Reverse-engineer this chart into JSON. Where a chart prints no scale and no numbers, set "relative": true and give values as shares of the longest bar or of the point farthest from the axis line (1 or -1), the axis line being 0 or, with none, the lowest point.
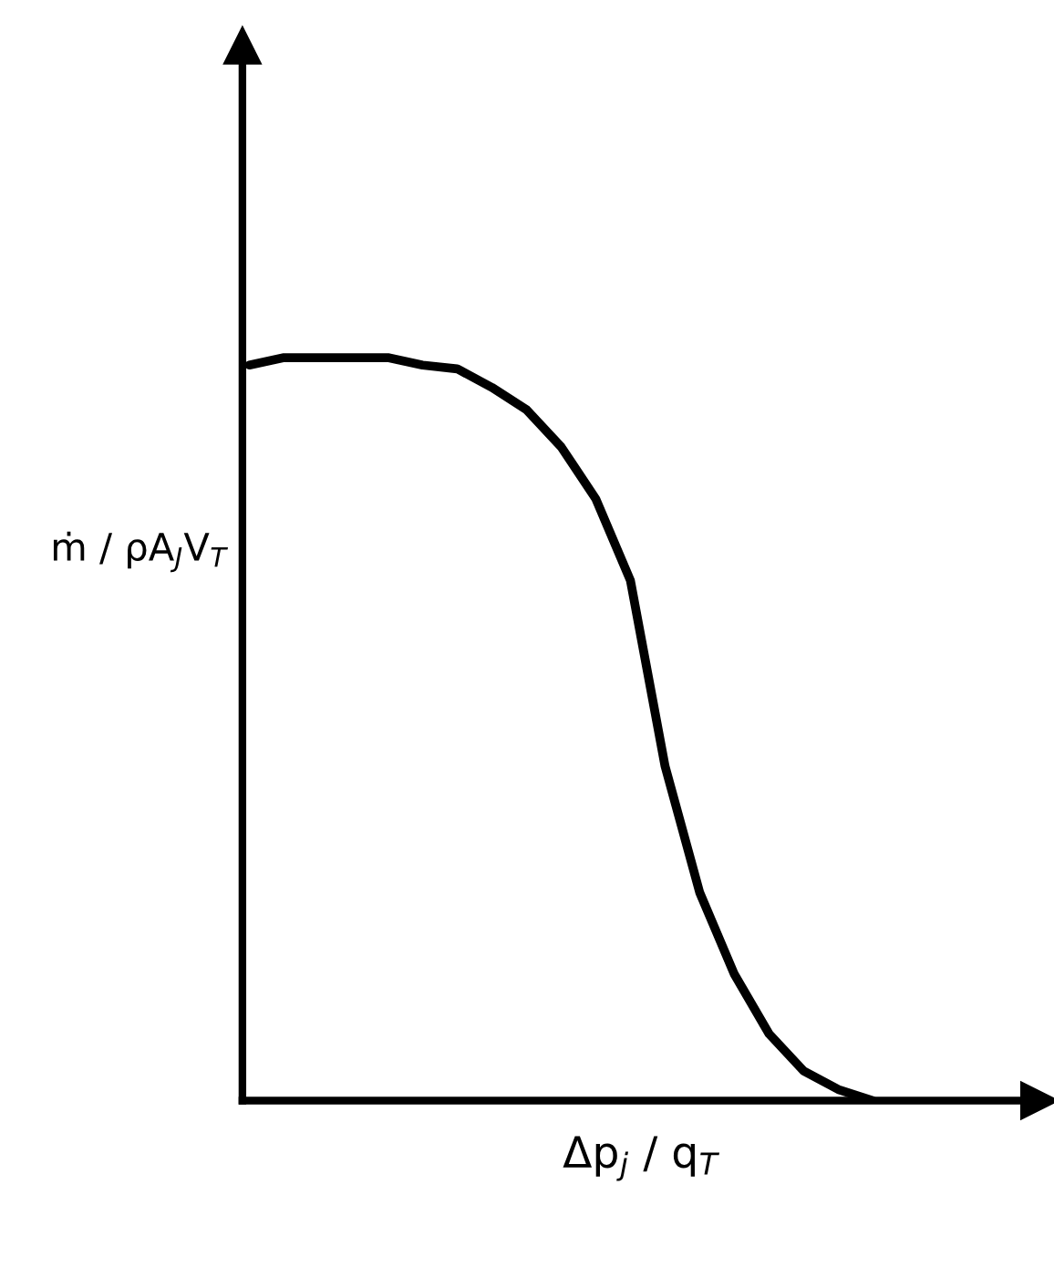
{
  "chart_data": {
    "type": "line",
    "relative": true,
    "tick_labels": false,
    "xlabel": "Δp$_{j}$ / q$_{T}$",
    "ylabel": "ṁ / ρA$_{J}$V$_{T}$",
    "categories": [
      null,
      null,
      null,
      null,
      null,
      null,
      null,
      null,
      null,
      null,
      null,
      null,
      null,
      null,
      null,
      null,
      null,
      null,
      null
    ],
    "series": [
      {
        "color": "#000000",
        "values": [
          0.99,
          1,
          1,
          1,
          1,
          0.99,
          0.985,
          0.96,
          0.93,
          0.88,
          0.81,
          0.7,
          0.45,
          0.28,
          0.17,
          0.09,
          0.04,
          0.015,
          0
        ]
      }
    ]
  }
}
